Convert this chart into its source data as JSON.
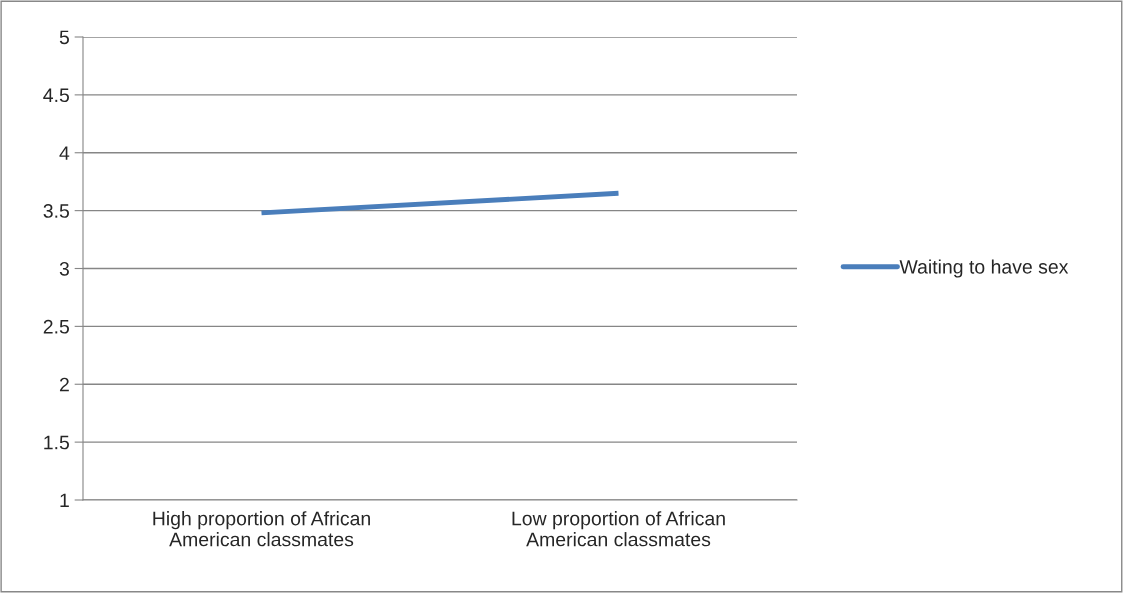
{
  "chart_data": {
    "type": "line",
    "categories": [
      "High proportion of African\nAmerican classmates",
      "Low proportion of African\nAmerican classmates"
    ],
    "series": [
      {
        "name": "Waiting to have sex",
        "color": "#4a7ebb",
        "values": [
          3.48,
          3.65
        ]
      }
    ],
    "ylim": [
      1,
      5
    ],
    "yticks": [
      1,
      1.5,
      2,
      2.5,
      3,
      3.5,
      4,
      4.5,
      5
    ],
    "grid": "y",
    "legend": "right",
    "marker": "none",
    "line_style": "solid"
  }
}
